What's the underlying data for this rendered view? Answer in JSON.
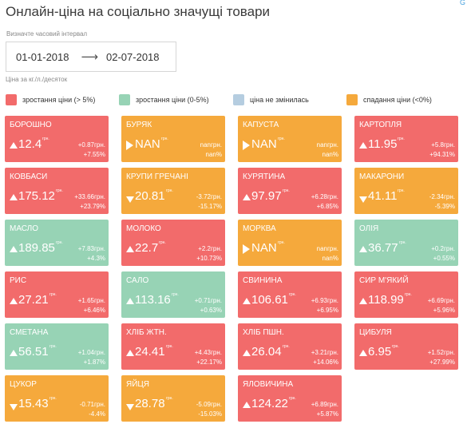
{
  "header": {
    "title": "Онлайн-ціна на соціально значущі товари",
    "corner_mark": "G",
    "interval_label": "Визначте часовий інтервал",
    "date_from": "01-01-2018",
    "date_arrow": "⟶",
    "date_to": "02-07-2018",
    "unit_note": "Ціна за кг./л./десяток"
  },
  "legend": [
    {
      "label": "зростання ціни (> 5%)",
      "color": "#f26b6b"
    },
    {
      "label": "зростання ціни (0-5%)",
      "color": "#97d3b5"
    },
    {
      "label": "ціна не змінилась",
      "color": "#b5cde0"
    },
    {
      "label": "спадання ціни (<0%)",
      "color": "#f5a93c"
    }
  ],
  "colors": {
    "red": "#f26b6b",
    "green": "#97d3b5",
    "blue": "#b5cde0",
    "orange": "#f5a93c"
  },
  "currency": "грн.",
  "tiles": [
    {
      "name": "БОРОШНО",
      "price": "12.4",
      "trend": "up",
      "chg_abs": "+0.87грн.",
      "chg_pct": "+7.55%",
      "color": "red"
    },
    {
      "name": "БУРЯК",
      "price": "NAN",
      "trend": "flat",
      "chg_abs": "nanгрн.",
      "chg_pct": "nan%",
      "color": "orange"
    },
    {
      "name": "КАПУСТА",
      "price": "NAN",
      "trend": "flat",
      "chg_abs": "nanгрн.",
      "chg_pct": "nan%",
      "color": "orange"
    },
    {
      "name": "КАРТОПЛЯ",
      "price": "11.95",
      "trend": "up",
      "chg_abs": "+5.8грн.",
      "chg_pct": "+94.31%",
      "color": "red"
    },
    {
      "name": "КОВБАСИ",
      "price": "175.12",
      "trend": "up",
      "chg_abs": "+33.66грн.",
      "chg_pct": "+23.79%",
      "color": "red"
    },
    {
      "name": "КРУПИ ГРЕЧАНІ",
      "price": "20.81",
      "trend": "down",
      "chg_abs": "-3.72грн.",
      "chg_pct": "-15.17%",
      "color": "orange"
    },
    {
      "name": "КУРЯТИНА",
      "price": "97.97",
      "trend": "up",
      "chg_abs": "+6.28грн.",
      "chg_pct": "+6.85%",
      "color": "red"
    },
    {
      "name": "МАКАРОНИ",
      "price": "41.11",
      "trend": "down",
      "chg_abs": "-2.34грн.",
      "chg_pct": "-5.39%",
      "color": "orange"
    },
    {
      "name": "МАСЛО",
      "price": "189.85",
      "trend": "up",
      "chg_abs": "+7.83грн.",
      "chg_pct": "+4.3%",
      "color": "green"
    },
    {
      "name": "МОЛОКО",
      "price": "22.7",
      "trend": "up",
      "chg_abs": "+2.2грн.",
      "chg_pct": "+10.73%",
      "color": "red"
    },
    {
      "name": "МОРКВА",
      "price": "NAN",
      "trend": "flat",
      "chg_abs": "nanгрн.",
      "chg_pct": "nan%",
      "color": "orange"
    },
    {
      "name": "ОЛІЯ",
      "price": "36.77",
      "trend": "up",
      "chg_abs": "+0.2грн.",
      "chg_pct": "+0.55%",
      "color": "green"
    },
    {
      "name": "РИС",
      "price": "27.21",
      "trend": "up",
      "chg_abs": "+1.65грн.",
      "chg_pct": "+6.46%",
      "color": "red"
    },
    {
      "name": "САЛО",
      "price": "113.16",
      "trend": "up",
      "chg_abs": "+0.71грн.",
      "chg_pct": "+0.63%",
      "color": "green"
    },
    {
      "name": "СВИНИНА",
      "price": "106.61",
      "trend": "up",
      "chg_abs": "+6.93грн.",
      "chg_pct": "+6.95%",
      "color": "red"
    },
    {
      "name": "СИР М'ЯКИЙ",
      "price": "118.99",
      "trend": "up",
      "chg_abs": "+6.69грн.",
      "chg_pct": "+5.96%",
      "color": "red"
    },
    {
      "name": "СМЕТАНА",
      "price": "56.51",
      "trend": "up",
      "chg_abs": "+1.04грн.",
      "chg_pct": "+1.87%",
      "color": "green"
    },
    {
      "name": "ХЛІБ ЖТН.",
      "price": "24.41",
      "trend": "up",
      "chg_abs": "+4.43грн.",
      "chg_pct": "+22.17%",
      "color": "red"
    },
    {
      "name": "ХЛІБ ПШН.",
      "price": "26.04",
      "trend": "up",
      "chg_abs": "+3.21грн.",
      "chg_pct": "+14.06%",
      "color": "red"
    },
    {
      "name": "ЦИБУЛЯ",
      "price": "6.95",
      "trend": "up",
      "chg_abs": "+1.52грн.",
      "chg_pct": "+27.99%",
      "color": "red"
    },
    {
      "name": "ЦУКОР",
      "price": "15.43",
      "trend": "down",
      "chg_abs": "-0.71грн.",
      "chg_pct": "-4.4%",
      "color": "orange"
    },
    {
      "name": "ЯЙЦЯ",
      "price": "28.78",
      "trend": "down",
      "chg_abs": "-5.09грн.",
      "chg_pct": "-15.03%",
      "color": "orange"
    },
    {
      "name": "ЯЛОВИЧИНА",
      "price": "124.22",
      "trend": "up",
      "chg_abs": "+6.89грн.",
      "chg_pct": "+5.87%",
      "color": "red"
    }
  ]
}
